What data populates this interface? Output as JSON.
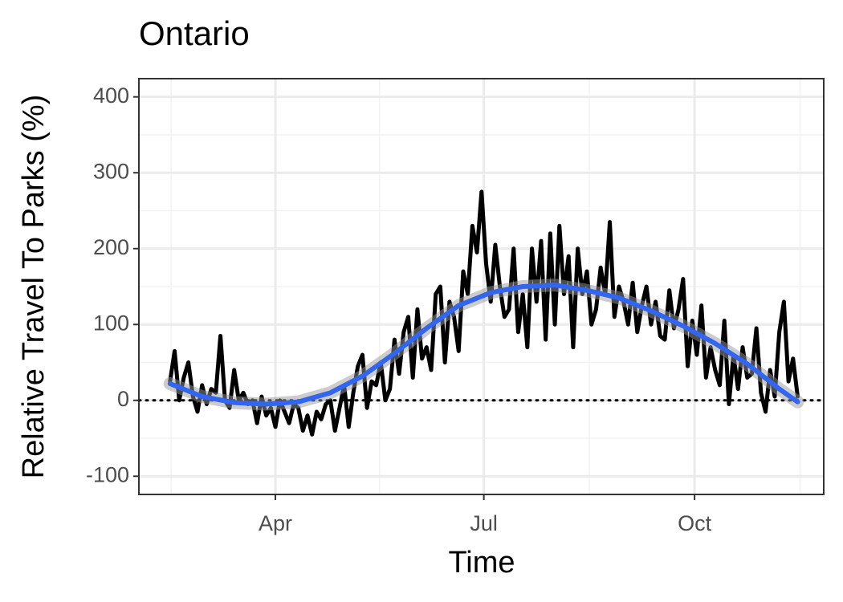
{
  "chart_data": {
    "type": "line",
    "title": "Ontario",
    "x_label": "Time",
    "y_label": "Relative Travel To Parks (%)",
    "xlim": [
      32.4,
      331.4
    ],
    "ylim": [
      -124,
      424
    ],
    "xticks": [
      {
        "value": 92,
        "label": "Apr"
      },
      {
        "value": 183,
        "label": "Jul"
      },
      {
        "value": 275,
        "label": "Oct"
      }
    ],
    "yticks": [
      -100,
      0,
      100,
      200,
      300,
      400
    ],
    "grid": true,
    "hline": 0,
    "series": [
      {
        "color": "#000000",
        "width": 5,
        "x": [
          46,
          48,
          50,
          52,
          54,
          56,
          58,
          60,
          62,
          64,
          66,
          68,
          70,
          72,
          74,
          76,
          78,
          80,
          82,
          84,
          86,
          88,
          90,
          92,
          94,
          96,
          98,
          100,
          102,
          104,
          106,
          108,
          110,
          112,
          114,
          116,
          118,
          120,
          122,
          124,
          126,
          128,
          130,
          132,
          134,
          136,
          138,
          140,
          142,
          144,
          146,
          148,
          150,
          152,
          154,
          156,
          158,
          160,
          162,
          164,
          166,
          168,
          170,
          172,
          174,
          176,
          178,
          180,
          182,
          184,
          186,
          188,
          190,
          192,
          194,
          196,
          198,
          200,
          202,
          204,
          206,
          208,
          210,
          212,
          214,
          216,
          218,
          220,
          222,
          224,
          226,
          228,
          230,
          232,
          234,
          236,
          238,
          240,
          242,
          244,
          246,
          248,
          250,
          252,
          254,
          256,
          258,
          260,
          262,
          264,
          266,
          268,
          270,
          272,
          274,
          276,
          278,
          280,
          282,
          284,
          286,
          288,
          290,
          292,
          294,
          296,
          298,
          300,
          302,
          304,
          306,
          308,
          310,
          312,
          314,
          316,
          318,
          320
        ],
        "values": [
          25,
          65,
          0,
          30,
          50,
          5,
          -15,
          20,
          -5,
          15,
          10,
          85,
          0,
          -10,
          40,
          0,
          10,
          -5,
          0,
          -30,
          5,
          -20,
          -10,
          -35,
          0,
          -15,
          -30,
          -5,
          -10,
          -40,
          -20,
          -45,
          -15,
          -25,
          -5,
          0,
          -40,
          -10,
          20,
          -35,
          10,
          45,
          60,
          -10,
          25,
          20,
          50,
          0,
          15,
          80,
          35,
          90,
          110,
          30,
          120,
          55,
          70,
          40,
          140,
          150,
          50,
          130,
          110,
          65,
          170,
          140,
          230,
          195,
          275,
          180,
          130,
          205,
          150,
          110,
          120,
          200,
          90,
          140,
          70,
          200,
          130,
          210,
          80,
          220,
          100,
          230,
          140,
          190,
          70,
          200,
          140,
          170,
          100,
          120,
          175,
          140,
          235,
          110,
          150,
          130,
          100,
          155,
          90,
          125,
          150,
          100,
          130,
          85,
          80,
          145,
          95,
          120,
          160,
          45,
          105,
          60,
          125,
          30,
          70,
          40,
          20,
          105,
          -5,
          60,
          15,
          70,
          30,
          35,
          95,
          10,
          -15,
          40,
          5,
          90,
          130,
          25,
          55,
          5
        ]
      },
      {
        "color": "#3366ee",
        "width": 6,
        "x": [
          46,
          60,
          74,
          88,
          102,
          116,
          130,
          144,
          158,
          172,
          186,
          200,
          214,
          228,
          242,
          256,
          270,
          284,
          298,
          312,
          320
        ],
        "values": [
          22,
          5,
          -3,
          -5,
          -2,
          10,
          32,
          62,
          95,
          125,
          142,
          150,
          152,
          145,
          135,
          118,
          98,
          75,
          48,
          15,
          -2
        ]
      }
    ]
  }
}
